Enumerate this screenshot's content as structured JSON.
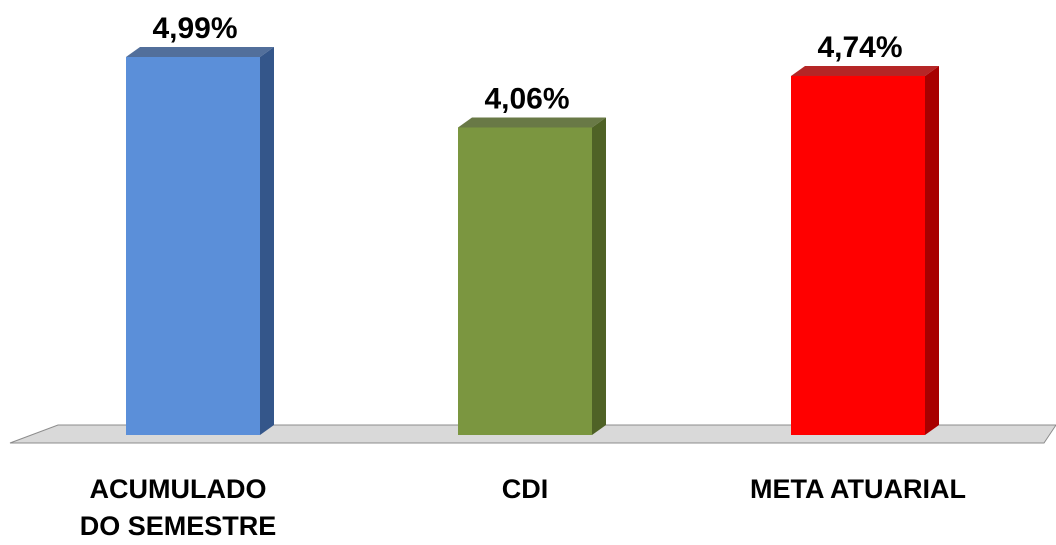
{
  "chart_data": {
    "type": "bar",
    "categories": [
      [
        "ACUMULADO",
        "DO SEMESTRE"
      ],
      [
        "CDI"
      ],
      [
        "META ATUARIAL"
      ]
    ],
    "values": [
      4.99,
      4.06,
      4.74
    ],
    "value_labels": [
      "4,99%",
      "4,06%",
      "4,74%"
    ],
    "colors": [
      "#5b8fd9",
      "#7b9640",
      "#ff0000"
    ],
    "side_colors": [
      "#34568a",
      "#4f6226",
      "#a80000"
    ],
    "ylim": [
      0,
      5.3
    ],
    "grid": false,
    "legend": "none",
    "style": "3d"
  }
}
